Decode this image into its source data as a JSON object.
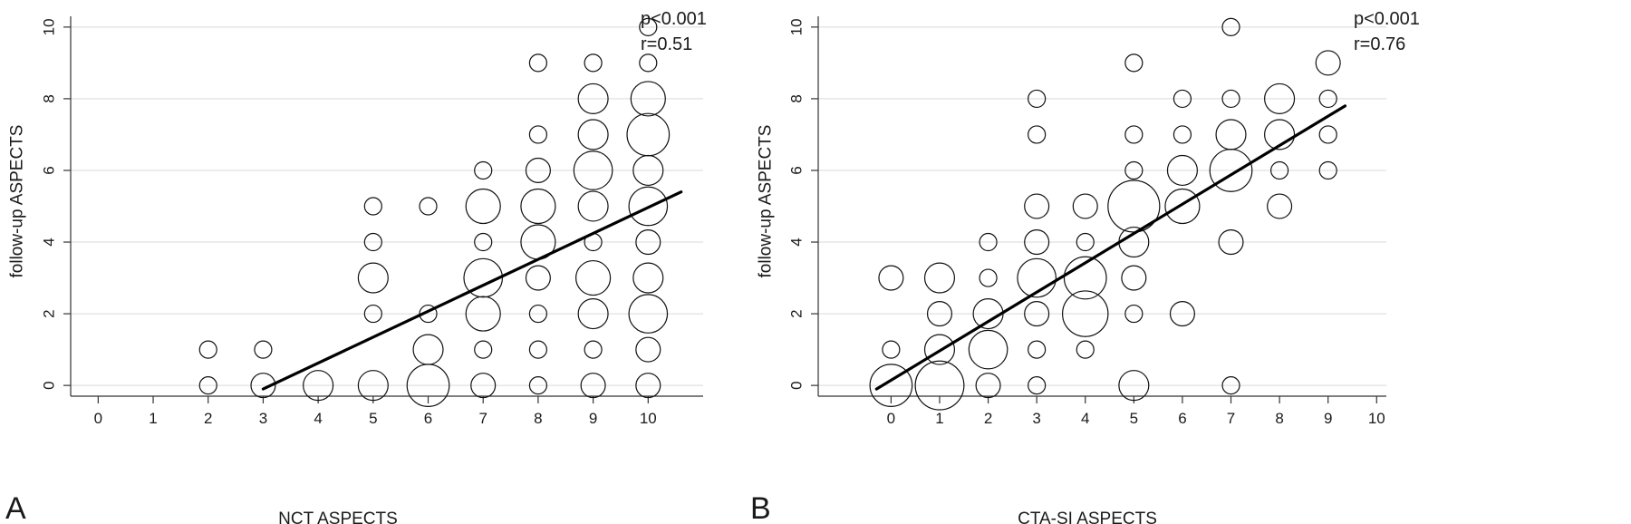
{
  "chart_data": [
    {
      "type": "scatter",
      "panel_label": "A",
      "xlabel": "NCT ASPECTS",
      "ylabel": "follow-up ASPECTS",
      "xlim": [
        -0.5,
        11
      ],
      "ylim": [
        -0.3,
        10.3
      ],
      "xticks": [
        0,
        1,
        2,
        3,
        4,
        5,
        6,
        7,
        8,
        9,
        10
      ],
      "yticks": [
        0,
        2,
        4,
        6,
        8,
        10
      ],
      "grid": "horizontal",
      "annotations": [
        "p<0.001",
        "r=0.51"
      ],
      "points": [
        {
          "x": 2,
          "y": 1,
          "size": 1
        },
        {
          "x": 2,
          "y": 0,
          "size": 1
        },
        {
          "x": 3,
          "y": 1,
          "size": 1
        },
        {
          "x": 3,
          "y": 0,
          "size": 2
        },
        {
          "x": 4,
          "y": 0,
          "size": 3
        },
        {
          "x": 5,
          "y": 5,
          "size": 1
        },
        {
          "x": 5,
          "y": 4,
          "size": 1
        },
        {
          "x": 5,
          "y": 3,
          "size": 3
        },
        {
          "x": 5,
          "y": 2,
          "size": 1
        },
        {
          "x": 5,
          "y": 0,
          "size": 3
        },
        {
          "x": 6,
          "y": 5,
          "size": 1
        },
        {
          "x": 6,
          "y": 2,
          "size": 1
        },
        {
          "x": 6,
          "y": 1,
          "size": 3
        },
        {
          "x": 6,
          "y": 0,
          "size": 6
        },
        {
          "x": 7,
          "y": 6,
          "size": 1
        },
        {
          "x": 7,
          "y": 5,
          "size": 4
        },
        {
          "x": 7,
          "y": 4,
          "size": 1
        },
        {
          "x": 7,
          "y": 3,
          "size": 5
        },
        {
          "x": 7,
          "y": 2,
          "size": 4
        },
        {
          "x": 7,
          "y": 1,
          "size": 1
        },
        {
          "x": 7,
          "y": 0,
          "size": 2
        },
        {
          "x": 8,
          "y": 9,
          "size": 1
        },
        {
          "x": 8,
          "y": 7,
          "size": 1
        },
        {
          "x": 8,
          "y": 6,
          "size": 2
        },
        {
          "x": 8,
          "y": 5,
          "size": 4
        },
        {
          "x": 8,
          "y": 4,
          "size": 4
        },
        {
          "x": 8,
          "y": 3,
          "size": 2
        },
        {
          "x": 8,
          "y": 2,
          "size": 1
        },
        {
          "x": 8,
          "y": 1,
          "size": 1
        },
        {
          "x": 8,
          "y": 0,
          "size": 1
        },
        {
          "x": 9,
          "y": 9,
          "size": 1
        },
        {
          "x": 9,
          "y": 8,
          "size": 3
        },
        {
          "x": 9,
          "y": 7,
          "size": 3
        },
        {
          "x": 9,
          "y": 6,
          "size": 5
        },
        {
          "x": 9,
          "y": 5,
          "size": 3
        },
        {
          "x": 9,
          "y": 4,
          "size": 1
        },
        {
          "x": 9,
          "y": 3,
          "size": 4
        },
        {
          "x": 9,
          "y": 2,
          "size": 3
        },
        {
          "x": 9,
          "y": 1,
          "size": 1
        },
        {
          "x": 9,
          "y": 0,
          "size": 2
        },
        {
          "x": 10,
          "y": 10,
          "size": 1
        },
        {
          "x": 10,
          "y": 9,
          "size": 1
        },
        {
          "x": 10,
          "y": 8,
          "size": 4
        },
        {
          "x": 10,
          "y": 7,
          "size": 6
        },
        {
          "x": 10,
          "y": 6,
          "size": 3
        },
        {
          "x": 10,
          "y": 5,
          "size": 5
        },
        {
          "x": 10,
          "y": 4,
          "size": 2
        },
        {
          "x": 10,
          "y": 3,
          "size": 3
        },
        {
          "x": 10,
          "y": 2,
          "size": 5
        },
        {
          "x": 10,
          "y": 1,
          "size": 2
        },
        {
          "x": 10,
          "y": 0,
          "size": 2
        }
      ],
      "fit_line": {
        "x": [
          3,
          10.6
        ],
        "y": [
          -0.1,
          5.4
        ]
      }
    },
    {
      "type": "scatter",
      "panel_label": "B",
      "xlabel": "CTA-SI ASPECTS",
      "ylabel": "follow-up ASPECTS",
      "xlim": [
        -1.5,
        10.2
      ],
      "ylim": [
        -0.3,
        10.3
      ],
      "xticks": [
        0,
        1,
        2,
        3,
        4,
        5,
        6,
        7,
        8,
        9,
        10
      ],
      "yticks": [
        0,
        2,
        4,
        6,
        8,
        10
      ],
      "grid": "horizontal",
      "annotations": [
        "p<0.001",
        "r=0.76"
      ],
      "points": [
        {
          "x": 0,
          "y": 3,
          "size": 2
        },
        {
          "x": 0,
          "y": 1,
          "size": 1
        },
        {
          "x": 0,
          "y": 0,
          "size": 6
        },
        {
          "x": 1,
          "y": 3,
          "size": 3
        },
        {
          "x": 1,
          "y": 2,
          "size": 2
        },
        {
          "x": 1,
          "y": 1,
          "size": 3
        },
        {
          "x": 1,
          "y": 0,
          "size": 8
        },
        {
          "x": 2,
          "y": 4,
          "size": 1
        },
        {
          "x": 2,
          "y": 3,
          "size": 1
        },
        {
          "x": 2,
          "y": 2,
          "size": 3
        },
        {
          "x": 2,
          "y": 1,
          "size": 5
        },
        {
          "x": 2,
          "y": 0,
          "size": 2
        },
        {
          "x": 3,
          "y": 8,
          "size": 1
        },
        {
          "x": 3,
          "y": 7,
          "size": 1
        },
        {
          "x": 3,
          "y": 5,
          "size": 2
        },
        {
          "x": 3,
          "y": 4,
          "size": 2
        },
        {
          "x": 3,
          "y": 3,
          "size": 5
        },
        {
          "x": 3,
          "y": 2,
          "size": 2
        },
        {
          "x": 3,
          "y": 1,
          "size": 1
        },
        {
          "x": 3,
          "y": 0,
          "size": 1
        },
        {
          "x": 4,
          "y": 5,
          "size": 2
        },
        {
          "x": 4,
          "y": 4,
          "size": 1
        },
        {
          "x": 4,
          "y": 3,
          "size": 6
        },
        {
          "x": 4,
          "y": 2,
          "size": 7
        },
        {
          "x": 4,
          "y": 1,
          "size": 1
        },
        {
          "x": 5,
          "y": 9,
          "size": 1
        },
        {
          "x": 5,
          "y": 7,
          "size": 1
        },
        {
          "x": 5,
          "y": 6,
          "size": 1
        },
        {
          "x": 5,
          "y": 5,
          "size": 9
        },
        {
          "x": 5,
          "y": 4,
          "size": 3
        },
        {
          "x": 5,
          "y": 3,
          "size": 2
        },
        {
          "x": 5,
          "y": 2,
          "size": 1
        },
        {
          "x": 5,
          "y": 0,
          "size": 3
        },
        {
          "x": 6,
          "y": 8,
          "size": 1
        },
        {
          "x": 6,
          "y": 7,
          "size": 1
        },
        {
          "x": 6,
          "y": 6,
          "size": 3
        },
        {
          "x": 6,
          "y": 5,
          "size": 4
        },
        {
          "x": 6,
          "y": 2,
          "size": 2
        },
        {
          "x": 7,
          "y": 10,
          "size": 1
        },
        {
          "x": 7,
          "y": 8,
          "size": 1
        },
        {
          "x": 7,
          "y": 7,
          "size": 3
        },
        {
          "x": 7,
          "y": 6,
          "size": 6
        },
        {
          "x": 7,
          "y": 4,
          "size": 2
        },
        {
          "x": 7,
          "y": 0,
          "size": 1
        },
        {
          "x": 8,
          "y": 8,
          "size": 3
        },
        {
          "x": 8,
          "y": 7,
          "size": 3
        },
        {
          "x": 8,
          "y": 6,
          "size": 1
        },
        {
          "x": 8,
          "y": 5,
          "size": 2
        },
        {
          "x": 9,
          "y": 9,
          "size": 2
        },
        {
          "x": 9,
          "y": 8,
          "size": 1
        },
        {
          "x": 9,
          "y": 7,
          "size": 1
        },
        {
          "x": 9,
          "y": 6,
          "size": 1
        }
      ],
      "fit_line": {
        "x": [
          -0.3,
          9.35
        ],
        "y": [
          -0.1,
          7.8
        ]
      }
    }
  ]
}
